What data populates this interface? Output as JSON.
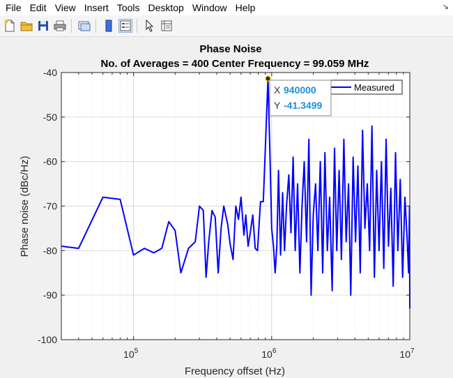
{
  "menu": {
    "items": [
      "File",
      "Edit",
      "View",
      "Insert",
      "Tools",
      "Desktop",
      "Window",
      "Help"
    ]
  },
  "toolbar": {
    "icons": [
      "new-figure-icon",
      "open-file-icon",
      "save-icon",
      "print-icon",
      "link-plot-icon",
      "colorbar-icon",
      "legend-icon",
      "edit-plot-icon",
      "property-inspector-icon"
    ]
  },
  "datatip": {
    "x_key": "X",
    "x_value": "940000",
    "y_key": "Y",
    "y_value": "-41.3499"
  },
  "chart_data": {
    "type": "line",
    "title": "Phase Noise",
    "subtitle": "No. of Averages = 400 Center Frequency = 99.059 MHz",
    "xlabel": "Frequency offset (Hz)",
    "ylabel": "Phase noise (dBc/Hz)",
    "xscale": "log",
    "xlim": [
      30000,
      10000000
    ],
    "ylim": [
      -100,
      -40
    ],
    "yticks": [
      -100,
      -90,
      -80,
      -70,
      -60,
      -50,
      -40
    ],
    "xtick_labels": [
      {
        "base": "10",
        "exp": "5"
      },
      {
        "base": "10",
        "exp": "6"
      },
      {
        "base": "10",
        "exp": "7"
      }
    ],
    "grid": true,
    "legend_position": "top-right",
    "series_color": "#0000ff",
    "series": [
      {
        "name": "Measured",
        "points": [
          [
            30000,
            -79
          ],
          [
            40000,
            -79.5
          ],
          [
            60000,
            -68
          ],
          [
            80000,
            -68.5
          ],
          [
            100000,
            -81
          ],
          [
            120000,
            -79.5
          ],
          [
            140000,
            -80.5
          ],
          [
            160000,
            -79.5
          ],
          [
            180000,
            -73.5
          ],
          [
            200000,
            -75.5
          ],
          [
            220000,
            -85
          ],
          [
            250000,
            -79.5
          ],
          [
            280000,
            -78
          ],
          [
            300000,
            -70
          ],
          [
            320000,
            -71
          ],
          [
            335000,
            -86
          ],
          [
            350000,
            -78
          ],
          [
            370000,
            -71
          ],
          [
            390000,
            -72.5
          ],
          [
            410000,
            -85
          ],
          [
            430000,
            -75
          ],
          [
            450000,
            -70
          ],
          [
            480000,
            -74
          ],
          [
            500000,
            -78.5
          ],
          [
            525000,
            -82
          ],
          [
            550000,
            -70
          ],
          [
            575000,
            -73
          ],
          [
            600000,
            -68
          ],
          [
            630000,
            -76.5
          ],
          [
            650000,
            -72
          ],
          [
            675000,
            -79
          ],
          [
            700000,
            -76
          ],
          [
            730000,
            -72
          ],
          [
            760000,
            -79.5
          ],
          [
            790000,
            -80
          ],
          [
            830000,
            -69
          ],
          [
            870000,
            -69
          ],
          [
            905000,
            -55
          ],
          [
            940000,
            -41.35
          ],
          [
            975000,
            -60
          ],
          [
            1000000,
            -75
          ],
          [
            1030000,
            -79
          ],
          [
            1060000,
            -85
          ],
          [
            1090000,
            -79
          ],
          [
            1120000,
            -62
          ],
          [
            1160000,
            -81
          ],
          [
            1200000,
            -67
          ],
          [
            1240000,
            -80
          ],
          [
            1280000,
            -70
          ],
          [
            1330000,
            -63
          ],
          [
            1380000,
            -76
          ],
          [
            1430000,
            -59
          ],
          [
            1480000,
            -80
          ],
          [
            1540000,
            -65
          ],
          [
            1600000,
            -85
          ],
          [
            1660000,
            -70
          ],
          [
            1720000,
            -60
          ],
          [
            1790000,
            -78
          ],
          [
            1860000,
            -55
          ],
          [
            1930000,
            -90
          ],
          [
            2000000,
            -72
          ],
          [
            2080000,
            -65
          ],
          [
            2160000,
            -80
          ],
          [
            2250000,
            -60
          ],
          [
            2340000,
            -85
          ],
          [
            2430000,
            -58
          ],
          [
            2530000,
            -80
          ],
          [
            2630000,
            -68
          ],
          [
            2740000,
            -89
          ],
          [
            2850000,
            -57
          ],
          [
            2960000,
            -80
          ],
          [
            3080000,
            -62
          ],
          [
            3200000,
            -82
          ],
          [
            3330000,
            -55
          ],
          [
            3460000,
            -78
          ],
          [
            3600000,
            -65
          ],
          [
            3740000,
            -90
          ],
          [
            3890000,
            -59
          ],
          [
            4050000,
            -78
          ],
          [
            4210000,
            -61
          ],
          [
            4380000,
            -85
          ],
          [
            4550000,
            -53
          ],
          [
            4730000,
            -75
          ],
          [
            4920000,
            -65
          ],
          [
            5120000,
            -80
          ],
          [
            5320000,
            -52
          ],
          [
            5540000,
            -86
          ],
          [
            5760000,
            -62
          ],
          [
            5990000,
            -80
          ],
          [
            6230000,
            -60
          ],
          [
            6480000,
            -84
          ],
          [
            6740000,
            -55
          ],
          [
            7010000,
            -79
          ],
          [
            7290000,
            -66
          ],
          [
            7580000,
            -88
          ],
          [
            7880000,
            -58
          ],
          [
            8200000,
            -80
          ],
          [
            8530000,
            -64
          ],
          [
            8870000,
            -86
          ],
          [
            9220000,
            -68
          ],
          [
            9590000,
            -78
          ],
          [
            9800000,
            -85
          ],
          [
            9950000,
            -70
          ],
          [
            10000000,
            -93
          ]
        ]
      }
    ]
  }
}
